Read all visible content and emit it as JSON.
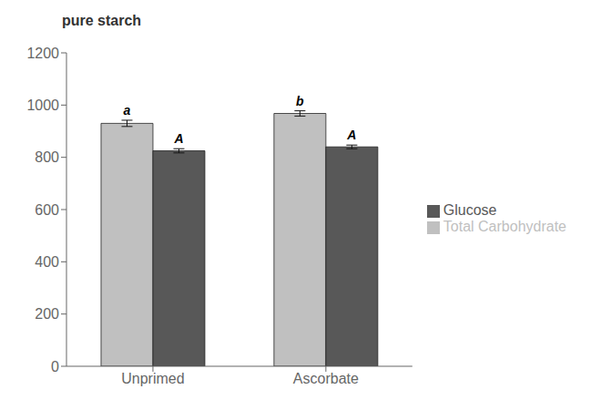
{
  "chart_data": {
    "type": "bar",
    "title": "pure starch",
    "categories": [
      "Unprimed",
      "Ascorbate"
    ],
    "series": [
      {
        "name": "Total Carbohydrate",
        "color": "#c0c0c0",
        "values": [
          930,
          968
        ],
        "errors": [
          12,
          10
        ],
        "annotations": [
          "a",
          "b"
        ]
      },
      {
        "name": "Glucose",
        "color": "#585858",
        "values": [
          825,
          840
        ],
        "errors": [
          8,
          7
        ],
        "annotations": [
          "A",
          "A"
        ]
      }
    ],
    "ylim": [
      0,
      1200
    ],
    "yticks": [
      0,
      200,
      400,
      600,
      800,
      1000,
      1200
    ],
    "grid": false,
    "legend": "right"
  }
}
